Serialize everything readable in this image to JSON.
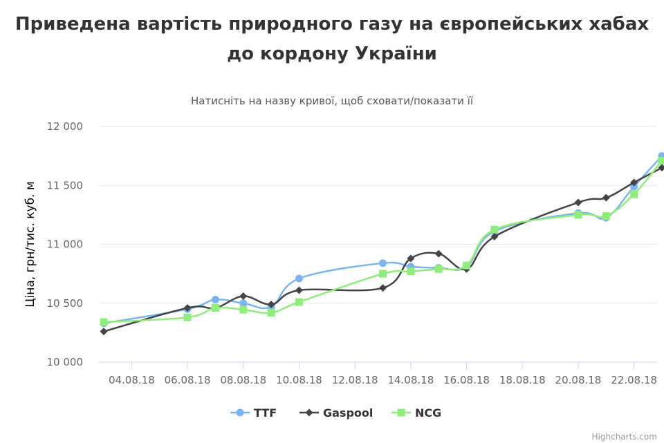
{
  "chart_data": {
    "type": "line",
    "title": "Приведена вартість природного газу на європейських хабах до кордону України",
    "subtitle": "Натисніть на назву кривої, щоб сховати/показати її",
    "ylabel": "Ціна, грн/тис. куб. м",
    "xlabel": "",
    "ylim": [
      10000,
      12000
    ],
    "yticks": [
      10000,
      10500,
      11000,
      11500,
      12000
    ],
    "ytick_labels": [
      "10 000",
      "10 500",
      "11 000",
      "11 500",
      "12 000"
    ],
    "xlim": [
      "2018-08-03",
      "2018-08-23"
    ],
    "xtick_labels": [
      "04.08.18",
      "06.08.18",
      "08.08.18",
      "10.08.18",
      "12.08.18",
      "14.08.18",
      "16.08.18",
      "18.08.18",
      "20.08.18",
      "22.08.18"
    ],
    "grid": true,
    "legend": "bottom",
    "series": [
      {
        "name": "TTF",
        "color": "#7cb5ec",
        "marker": "circle",
        "x": [
          "2018-08-03",
          "2018-08-06",
          "2018-08-07",
          "2018-08-08",
          "2018-08-09",
          "2018-08-10",
          "2018-08-13",
          "2018-08-14",
          "2018-08-15",
          "2018-08-16",
          "2018-08-17",
          "2018-08-20",
          "2018-08-21",
          "2018-08-22",
          "2018-08-23"
        ],
        "values": [
          10330,
          10450,
          10530,
          10500,
          10470,
          10710,
          10840,
          10810,
          10800,
          10810,
          11110,
          11265,
          11225,
          11490,
          11750
        ]
      },
      {
        "name": "Gaspool",
        "color": "#434348",
        "marker": "diamond",
        "x": [
          "2018-08-03",
          "2018-08-06",
          "2018-08-07",
          "2018-08-08",
          "2018-08-09",
          "2018-08-10",
          "2018-08-13",
          "2018-08-14",
          "2018-08-15",
          "2018-08-16",
          "2018-08-17",
          "2018-08-20",
          "2018-08-21",
          "2018-08-22",
          "2018-08-23"
        ],
        "values": [
          10260,
          10460,
          10460,
          10560,
          10490,
          10610,
          10630,
          10880,
          10920,
          10790,
          11065,
          11355,
          11395,
          11525,
          11650
        ]
      },
      {
        "name": "NCG",
        "color": "#90ed7d",
        "marker": "square",
        "x": [
          "2018-08-03",
          "2018-08-06",
          "2018-08-07",
          "2018-08-08",
          "2018-08-09",
          "2018-08-10",
          "2018-08-13",
          "2018-08-14",
          "2018-08-15",
          "2018-08-16",
          "2018-08-17",
          "2018-08-20",
          "2018-08-21",
          "2018-08-22",
          "2018-08-23"
        ],
        "values": [
          10340,
          10380,
          10460,
          10445,
          10420,
          10510,
          10750,
          10770,
          10790,
          10820,
          11125,
          11250,
          11240,
          11425,
          11710
        ]
      }
    ]
  },
  "credits": "Highcharts.com"
}
